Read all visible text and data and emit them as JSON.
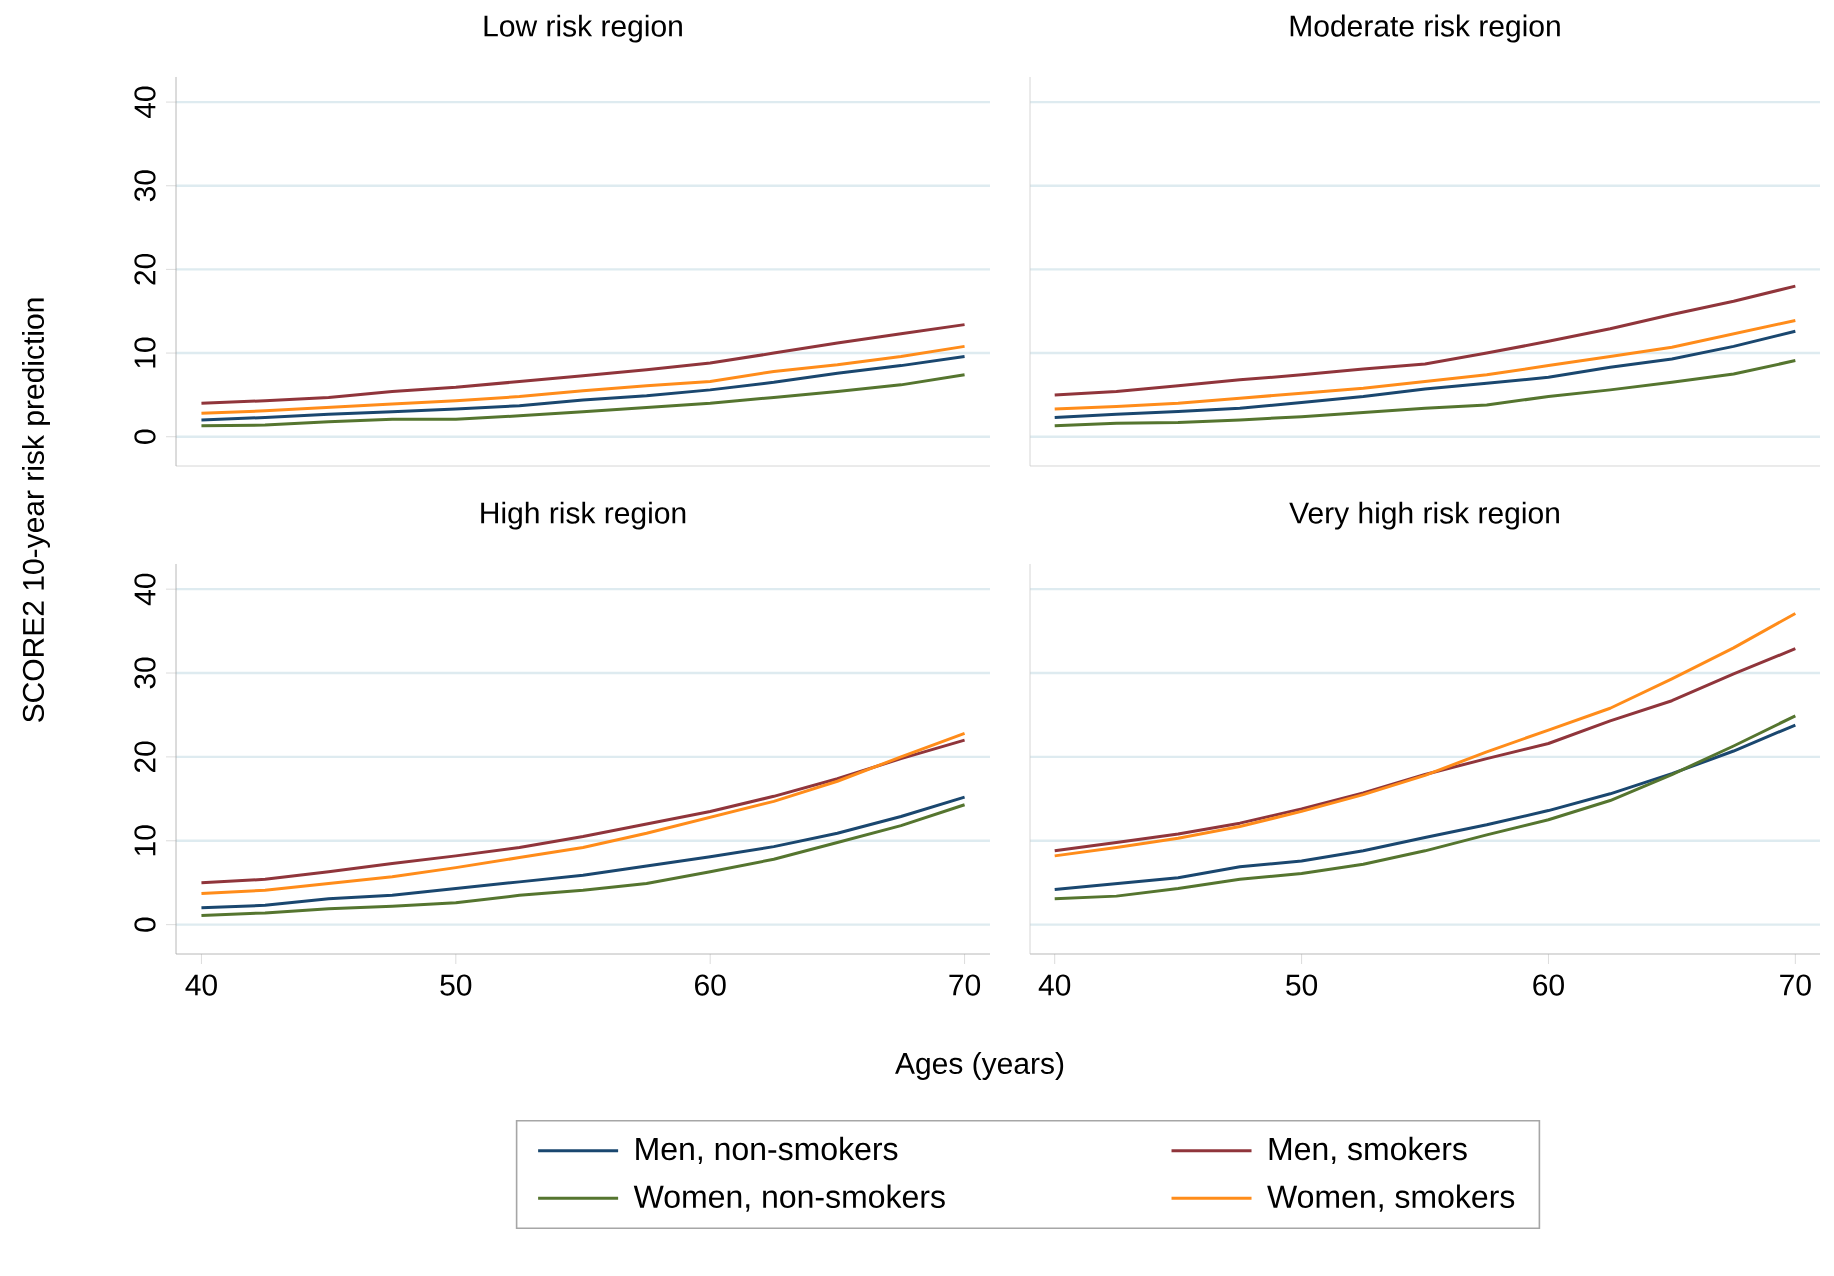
{
  "chart_data": [
    {
      "type": "line",
      "title": "Low risk region",
      "ylabel": "SCORE2 10-year risk prediction",
      "legend": "bottom",
      "grid": "y",
      "tick_labels": "y",
      "xlim": [
        39,
        71
      ],
      "xticks": [
        40,
        50,
        60,
        70
      ],
      "ylim": [
        -3.5,
        43
      ],
      "yticks": [
        0,
        10,
        20,
        30,
        40
      ],
      "x": [
        40,
        42.5,
        45,
        47.5,
        50,
        52.5,
        55,
        57.5,
        60,
        62.5,
        65,
        67.5,
        70
      ],
      "series": [
        {
          "name": "Men, non-smokers",
          "color": "#1a476f",
          "values": [
            2.0,
            2.3,
            2.7,
            3.0,
            3.3,
            3.7,
            4.4,
            4.9,
            5.6,
            6.5,
            7.6,
            8.5,
            9.6
          ]
        },
        {
          "name": "Men, smokers",
          "color": "#90353b",
          "values": [
            4.0,
            4.3,
            4.7,
            5.4,
            5.9,
            6.6,
            7.3,
            8.0,
            8.8,
            10.0,
            11.2,
            12.3,
            13.4
          ]
        },
        {
          "name": "Women, non-smokers",
          "color": "#55752f",
          "values": [
            1.3,
            1.4,
            1.8,
            2.1,
            2.1,
            2.5,
            3.0,
            3.5,
            4.0,
            4.7,
            5.4,
            6.2,
            7.4
          ]
        },
        {
          "name": "Women, smokers",
          "color": "#ff8c1a",
          "values": [
            2.8,
            3.1,
            3.5,
            3.9,
            4.3,
            4.8,
            5.5,
            6.1,
            6.6,
            7.8,
            8.6,
            9.6,
            10.8
          ]
        }
      ]
    },
    {
      "type": "line",
      "title": "Moderate risk region",
      "grid": "y",
      "tick_labels": false,
      "xlim": [
        39,
        71
      ],
      "xticks": [
        40,
        50,
        60,
        70
      ],
      "ylim": [
        -3.5,
        43
      ],
      "yticks": [
        0,
        10,
        20,
        30,
        40
      ],
      "x": [
        40,
        42.5,
        45,
        47.5,
        50,
        52.5,
        55,
        57.5,
        60,
        62.5,
        65,
        67.5,
        70
      ],
      "series": [
        {
          "color": "#1a476f",
          "values": [
            2.3,
            2.7,
            3.0,
            3.4,
            4.1,
            4.8,
            5.7,
            6.4,
            7.1,
            8.3,
            9.3,
            10.8,
            12.6
          ]
        },
        {
          "color": "#90353b",
          "values": [
            5.0,
            5.4,
            6.1,
            6.8,
            7.4,
            8.1,
            8.7,
            10.0,
            11.4,
            12.9,
            14.6,
            16.2,
            18.0
          ]
        },
        {
          "color": "#55752f",
          "values": [
            1.3,
            1.6,
            1.7,
            2.0,
            2.4,
            2.9,
            3.4,
            3.8,
            4.8,
            5.6,
            6.5,
            7.5,
            9.1
          ]
        },
        {
          "color": "#ff8c1a",
          "values": [
            3.3,
            3.6,
            4.0,
            4.6,
            5.2,
            5.8,
            6.6,
            7.4,
            8.5,
            9.6,
            10.7,
            12.3,
            13.9
          ]
        }
      ]
    },
    {
      "type": "line",
      "title": "High risk region",
      "xlabel": "Ages (years)",
      "grid": "y",
      "xlim": [
        39,
        71
      ],
      "xticks": [
        40,
        50,
        60,
        70
      ],
      "ylim": [
        -3.5,
        43
      ],
      "yticks": [
        0,
        10,
        20,
        30,
        40
      ],
      "x": [
        40,
        42.5,
        45,
        47.5,
        50,
        52.5,
        55,
        57.5,
        60,
        62.5,
        65,
        67.5,
        70
      ],
      "series": [
        {
          "color": "#1a476f",
          "values": [
            2.0,
            2.3,
            3.1,
            3.5,
            4.3,
            5.1,
            5.9,
            7.0,
            8.1,
            9.3,
            10.9,
            12.9,
            15.2
          ]
        },
        {
          "color": "#90353b",
          "values": [
            5.0,
            5.4,
            6.3,
            7.3,
            8.2,
            9.2,
            10.5,
            12.0,
            13.5,
            15.3,
            17.4,
            19.8,
            22.0
          ]
        },
        {
          "color": "#55752f",
          "values": [
            1.1,
            1.4,
            1.9,
            2.2,
            2.6,
            3.5,
            4.1,
            4.9,
            6.3,
            7.8,
            9.8,
            11.8,
            14.3
          ]
        },
        {
          "color": "#ff8c1a",
          "values": [
            3.7,
            4.1,
            4.9,
            5.7,
            6.8,
            8.0,
            9.2,
            10.9,
            12.8,
            14.7,
            17.1,
            20.0,
            22.8
          ]
        }
      ]
    },
    {
      "type": "line",
      "title": "Very high risk region",
      "grid": "y",
      "tick_labels": "x",
      "xlim": [
        39,
        71
      ],
      "xticks": [
        40,
        50,
        60,
        70
      ],
      "ylim": [
        -3.5,
        43
      ],
      "yticks": [
        0,
        10,
        20,
        30,
        40
      ],
      "x": [
        40,
        42.5,
        45,
        47.5,
        50,
        52.5,
        55,
        57.5,
        60,
        62.5,
        65,
        67.5,
        70
      ],
      "series": [
        {
          "color": "#1a476f",
          "values": [
            4.2,
            4.9,
            5.6,
            6.9,
            7.6,
            8.8,
            10.4,
            11.9,
            13.6,
            15.6,
            18.0,
            20.7,
            23.8
          ]
        },
        {
          "color": "#90353b",
          "values": [
            8.8,
            9.8,
            10.8,
            12.1,
            13.8,
            15.7,
            17.9,
            19.8,
            21.6,
            24.3,
            26.7,
            29.9,
            32.9
          ]
        },
        {
          "color": "#55752f",
          "values": [
            3.1,
            3.4,
            4.3,
            5.4,
            6.1,
            7.2,
            8.8,
            10.7,
            12.5,
            14.8,
            17.9,
            21.3,
            24.9
          ]
        },
        {
          "color": "#ff8c1a",
          "values": [
            8.2,
            9.2,
            10.3,
            11.7,
            13.5,
            15.5,
            17.8,
            20.6,
            23.2,
            25.8,
            29.3,
            33.0,
            37.1
          ]
        }
      ]
    }
  ]
}
